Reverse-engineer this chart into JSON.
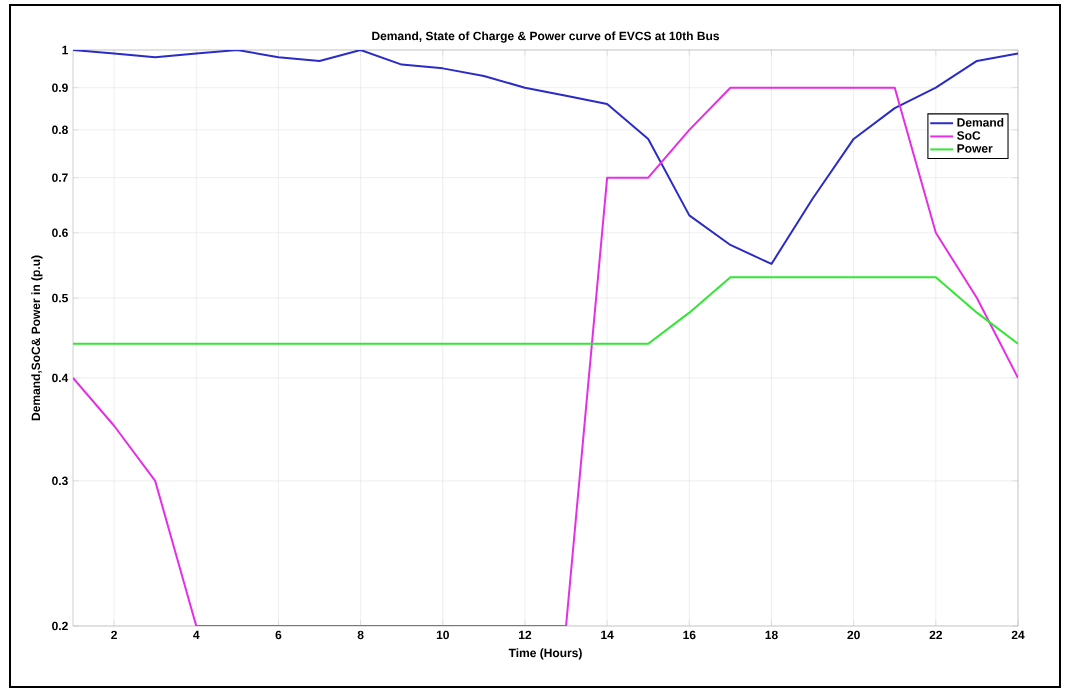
{
  "chart_data": {
    "type": "line",
    "title": "Demand, State of Charge & Power curve of EVCS at 10th Bus",
    "xlabel": "Time (Hours)",
    "ylabel": "Demand,SoC& Power in (p.u)",
    "x": [
      1,
      2,
      3,
      4,
      5,
      6,
      7,
      8,
      9,
      10,
      11,
      12,
      13,
      14,
      15,
      16,
      17,
      18,
      19,
      20,
      21,
      22,
      23,
      24
    ],
    "series": [
      {
        "name": "Demand",
        "color": "#2b2bc8",
        "values": [
          1.0,
          0.99,
          0.98,
          0.99,
          1.0,
          0.98,
          0.97,
          1.0,
          0.96,
          0.95,
          0.93,
          0.9,
          0.88,
          0.86,
          0.78,
          0.63,
          0.58,
          0.55,
          0.66,
          0.78,
          0.85,
          0.9,
          0.97,
          0.99
        ]
      },
      {
        "name": "SoC",
        "color": "#e62ee6",
        "values": [
          0.4,
          0.35,
          0.3,
          0.2,
          0.2,
          0.2,
          0.2,
          0.2,
          0.2,
          0.2,
          0.2,
          0.2,
          0.2,
          0.7,
          0.7,
          0.8,
          0.9,
          0.9,
          0.9,
          0.9,
          0.9,
          0.6,
          0.5,
          0.4
        ]
      },
      {
        "name": "Power",
        "color": "#33e633",
        "values": [
          0.44,
          0.44,
          0.44,
          0.44,
          0.44,
          0.44,
          0.44,
          0.44,
          0.44,
          0.44,
          0.44,
          0.44,
          0.44,
          0.44,
          0.44,
          0.48,
          0.53,
          0.53,
          0.53,
          0.53,
          0.53,
          0.53,
          0.48,
          0.44
        ]
      }
    ],
    "xlim": [
      1,
      24
    ],
    "xticks": [
      2,
      4,
      6,
      8,
      10,
      12,
      14,
      16,
      18,
      20,
      22,
      24
    ],
    "ylim": [
      0.2,
      1
    ],
    "yticks": [
      0.2,
      0.3,
      0.4,
      0.5,
      0.6,
      0.7,
      0.8,
      0.9,
      1
    ],
    "log": "y",
    "grid": true,
    "legend": "top right",
    "line_style": "solid",
    "marker": "none"
  }
}
